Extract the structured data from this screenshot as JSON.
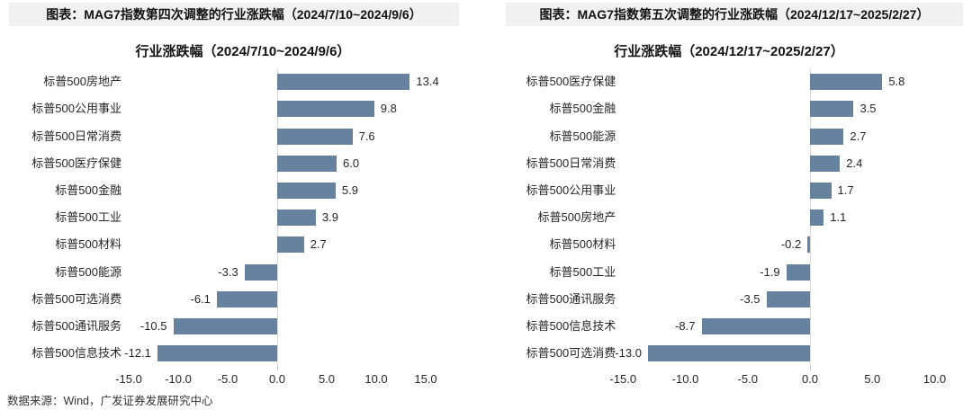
{
  "page": {
    "source_note": "数据来源：Wind，广发证券发展研究中心"
  },
  "colors": {
    "bar": "#66829e",
    "header_bg": "#f1f1f1",
    "axis_line": "#d9d9d9",
    "text": "#262626"
  },
  "chart_data": [
    {
      "type": "bar",
      "orientation": "horizontal",
      "header": "图表：MAG7指数第四次调整的行业涨跌幅（2024/7/10~2024/9/6）",
      "title": "行业涨跌幅（2024/7/10~2024/9/6）",
      "categories": [
        "标普500房地产",
        "标普500公用事业",
        "标普500日常消费",
        "标普500医疗保健",
        "标普500金融",
        "标普500工业",
        "标普500材料",
        "标普500能源",
        "标普500可选消费",
        "标普500通讯服务",
        "标普500信息技术"
      ],
      "values": [
        13.4,
        9.8,
        7.6,
        6.0,
        5.9,
        3.9,
        2.7,
        -3.3,
        -6.1,
        -10.5,
        -12.1
      ],
      "value_labels": [
        "13.4",
        "9.8",
        "7.6",
        "6.0",
        "5.9",
        "3.9",
        "2.7",
        "-3.3",
        "-6.1",
        "-10.5",
        "-12.1"
      ],
      "xlabel": "",
      "ylabel": "",
      "xlim": [
        -15,
        15
      ],
      "xticks": [
        "-15.0",
        "-10.0",
        "-5.0",
        "0.0",
        "5.0",
        "10.0",
        "15.0"
      ],
      "grid": false,
      "legend": false
    },
    {
      "type": "bar",
      "orientation": "horizontal",
      "header": "图表：MAG7指数第五次调整的行业涨跌幅（2024/12/17~2025/2/27）",
      "title": "行业涨跌幅（2024/12/17~2025/2/27）",
      "categories": [
        "标普500医疗保健",
        "标普500金融",
        "标普500能源",
        "标普500日常消费",
        "标普500公用事业",
        "标普500房地产",
        "标普500材料",
        "标普500工业",
        "标普500通讯服务",
        "标普500信息技术",
        "标普500可选消费"
      ],
      "values": [
        5.8,
        3.5,
        2.7,
        2.4,
        1.7,
        1.1,
        -0.2,
        -1.9,
        -3.5,
        -8.7,
        -13.0
      ],
      "value_labels": [
        "5.8",
        "3.5",
        "2.7",
        "2.4",
        "1.7",
        "1.1",
        "-0.2",
        "-1.9",
        "-3.5",
        "-8.7",
        "-13.0"
      ],
      "xlabel": "",
      "ylabel": "",
      "xlim": [
        -15,
        10
      ],
      "xticks": [
        "-15.0",
        "-10.0",
        "-5.0",
        "0.0",
        "5.0",
        "10.0"
      ],
      "grid": false,
      "legend": false
    }
  ]
}
